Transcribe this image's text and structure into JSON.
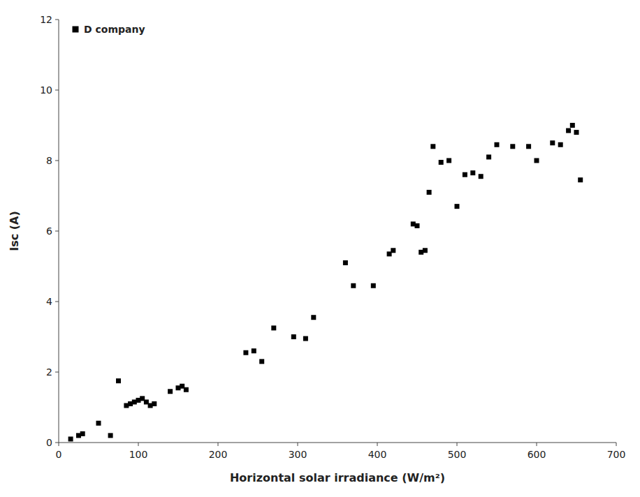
{
  "chart_data": {
    "type": "scatter",
    "x_label": "Horizontal solar irradiance (W/m²)",
    "y_label": "Isc (A)",
    "x": [
      15,
      25,
      30,
      50,
      65,
      75,
      85,
      90,
      95,
      100,
      105,
      110,
      115,
      120,
      140,
      150,
      155,
      160,
      235,
      245,
      255,
      270,
      295,
      310,
      320,
      360,
      370,
      395,
      415,
      420,
      445,
      450,
      455,
      460,
      465,
      470,
      480,
      490,
      500,
      510,
      520,
      530,
      540,
      550,
      570,
      590,
      600,
      620,
      630,
      640,
      645,
      650,
      655
    ],
    "series": [
      {
        "name": "D company",
        "color": "black",
        "marker": "square",
        "values": [
          0.1,
          0.2,
          0.25,
          0.55,
          0.2,
          1.75,
          1.05,
          1.1,
          1.15,
          1.2,
          1.25,
          1.15,
          1.05,
          1.1,
          1.45,
          1.55,
          1.6,
          1.5,
          2.55,
          2.6,
          2.3,
          3.25,
          3.0,
          2.95,
          3.55,
          5.1,
          4.45,
          4.45,
          5.35,
          5.45,
          6.2,
          6.15,
          5.4,
          5.45,
          7.1,
          8.4,
          7.95,
          8.0,
          6.7,
          7.6,
          7.65,
          7.55,
          8.1,
          8.45,
          8.4,
          8.4,
          8.0,
          8.5,
          8.45,
          8.85,
          9.0,
          8.8,
          7.45
        ]
      }
    ],
    "xlim": [
      0,
      700
    ],
    "ylim": [
      0,
      12
    ],
    "xticks": [
      0,
      100,
      200,
      300,
      400,
      500,
      600,
      700
    ],
    "yticks": [
      0,
      2,
      4,
      6,
      8,
      10,
      12
    ],
    "grid": false,
    "legend": "upper left"
  }
}
